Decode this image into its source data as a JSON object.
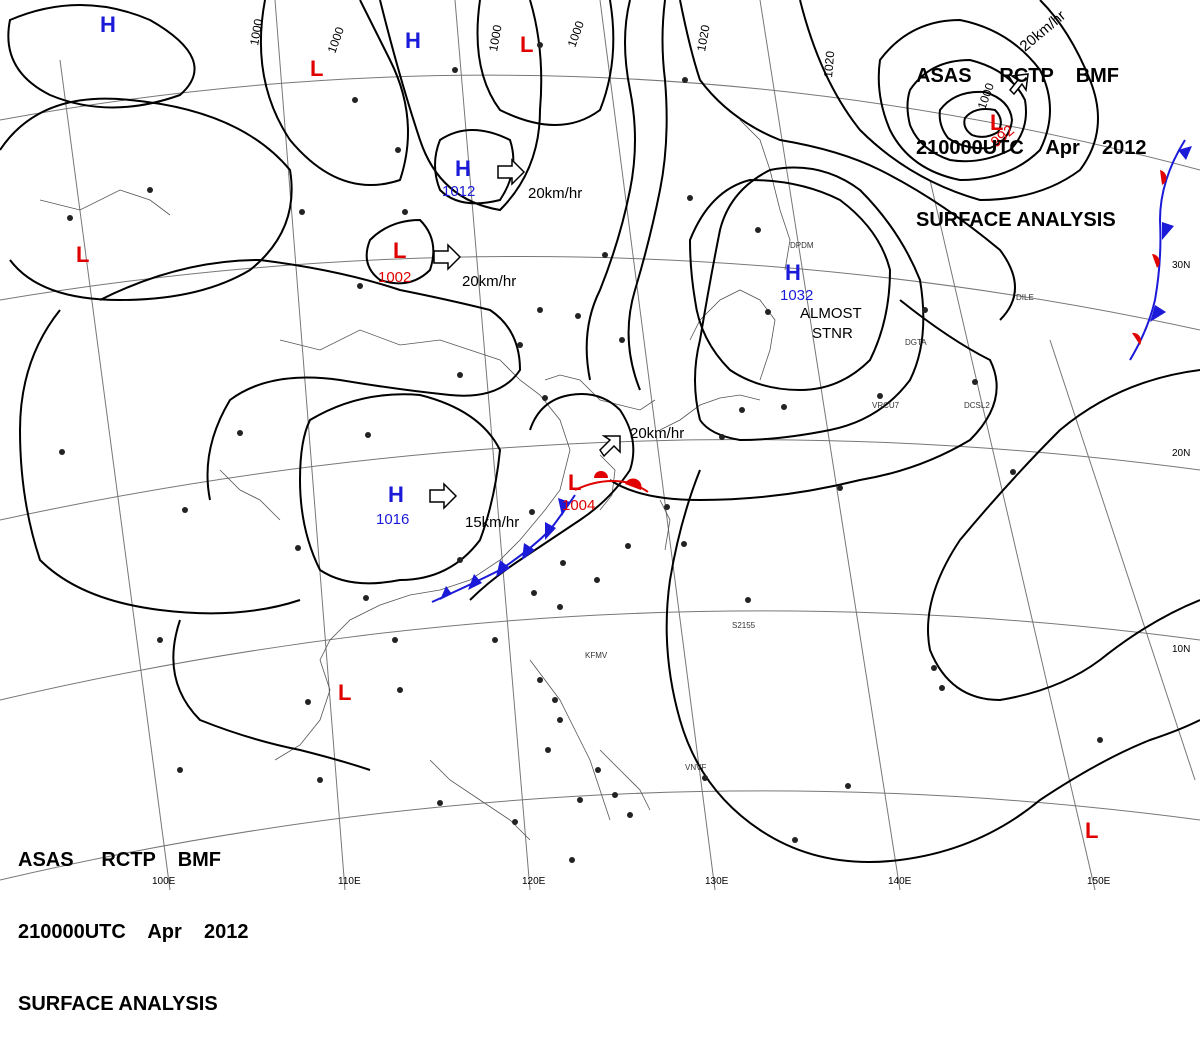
{
  "title": {
    "agency": "ASAS",
    "station": "RCTP",
    "center": "BMF",
    "time": "210000UTC",
    "month": "Apr",
    "year": "2012",
    "product": "SURFACE ANALYSIS"
  },
  "pressure_centers": [
    {
      "type": "H",
      "value": ""
    },
    {
      "type": "H",
      "value": ""
    },
    {
      "type": "H",
      "value": "1012"
    },
    {
      "type": "H",
      "value": "1032"
    },
    {
      "type": "H",
      "value": "1016"
    },
    {
      "type": "L",
      "value": ""
    },
    {
      "type": "L",
      "value": ""
    },
    {
      "type": "L",
      "value": "1002"
    },
    {
      "type": "L",
      "value": ""
    },
    {
      "type": "L",
      "value": "1004"
    },
    {
      "type": "L",
      "value": ""
    },
    {
      "type": "L",
      "value": "992"
    },
    {
      "type": "L",
      "value": ""
    }
  ],
  "movements": [
    "20km/hr",
    "20km/hr",
    "20km/hr",
    "15km/hr",
    "20km/hr"
  ],
  "annotations": [
    "ALMOST",
    "STNR"
  ],
  "isobar_labels": [
    "1000",
    "1000",
    "1000",
    "1000",
    "1020",
    "1020",
    "1000"
  ],
  "longitudes": [
    "100E",
    "110E",
    "120E",
    "130E",
    "140E",
    "150E"
  ],
  "latitudes": [
    "30N",
    "20N",
    "10N"
  ],
  "station_ids": [
    "DPDM",
    "DILE",
    "DGTA",
    "DCSL2",
    "VRCU7",
    "KFMV",
    "VNVF",
    "S2155"
  ],
  "colors": {
    "high": "#1a1ad8",
    "low": "#e00000",
    "cold_front": "#1a1ad8",
    "warm_front": "#e00000"
  }
}
